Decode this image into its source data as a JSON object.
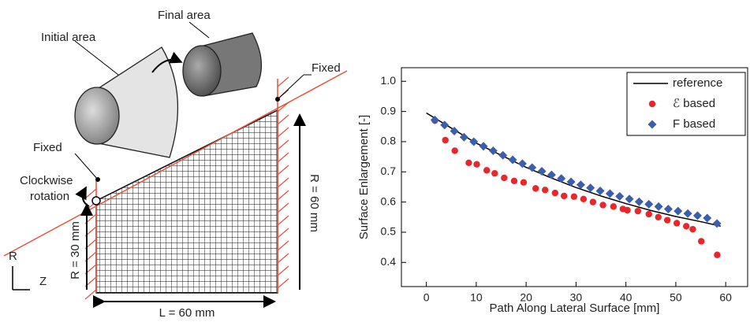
{
  "diagram": {
    "final_area": "Final area",
    "initial_area": "Initial area",
    "fixed_top": "Fixed",
    "fixed_left": "Fixed",
    "rotation": [
      "Clockwise",
      "rotation"
    ],
    "r60": "R = 60 mm",
    "r30": "R = 30 mm",
    "length": "L = 60 mm",
    "axis_r": "R",
    "axis_z": "Z"
  },
  "chart_data": {
    "type": "scatter",
    "x_label": "Path Along Lateral Surface [mm]",
    "y_label": "Surface Enlargement [-]",
    "xlim": [
      -5,
      64.4
    ],
    "ylim": [
      0.32,
      1.045
    ],
    "xticks": [
      0,
      10,
      20,
      30,
      40,
      50,
      60
    ],
    "yticks": [
      0.4,
      0.5,
      0.6,
      0.7,
      0.8,
      0.9,
      {
        "value": 1,
        "label": "1.0"
      }
    ],
    "legend": "upper-right",
    "series": [
      {
        "name": "reference",
        "color": "#000000",
        "marker": "line",
        "x": [
          0,
          5,
          10,
          15,
          20,
          25,
          30,
          35,
          40,
          45,
          50,
          55,
          59
        ],
        "values": [
          0.895,
          0.845,
          0.795,
          0.755,
          0.715,
          0.68,
          0.648,
          0.62,
          0.595,
          0.572,
          0.552,
          0.535,
          0.52
        ]
      },
      {
        "name": "ℰ based",
        "color": "#e8262c",
        "marker": "circle",
        "x": [
          1.7,
          3.8,
          5.7,
          8.5,
          10.1,
          12.1,
          13.7,
          15.6,
          17.6,
          19.5,
          21.9,
          23.8,
          25.8,
          27.6,
          29.6,
          31.5,
          33.4,
          35.4,
          37.5,
          39.4,
          40.3,
          42.4,
          44.6,
          46.5,
          48.3,
          50.2,
          52.1,
          53.4,
          55.1,
          58.3
        ],
        "values": [
          0.87,
          0.805,
          0.77,
          0.73,
          0.725,
          0.705,
          0.695,
          0.68,
          0.67,
          0.665,
          0.645,
          0.64,
          0.63,
          0.62,
          0.618,
          0.61,
          0.6,
          0.59,
          0.585,
          0.577,
          0.573,
          0.57,
          0.56,
          0.55,
          0.54,
          0.53,
          0.52,
          0.51,
          0.47,
          0.425
        ]
      },
      {
        "name": "F based",
        "color": "#3b5fad",
        "marker": "diamond",
        "x": [
          1.7,
          3.65,
          5.6,
          7.55,
          9.5,
          11.45,
          13.4,
          15.35,
          17.3,
          19.25,
          21.2,
          23.15,
          25.1,
          27.05,
          29,
          30.95,
          32.9,
          34.85,
          36.8,
          38.75,
          40.7,
          42.65,
          44.6,
          46.55,
          48.5,
          50.45,
          52.4,
          54.35,
          56.3,
          58.25
        ],
        "values": [
          0.872,
          0.855,
          0.835,
          0.815,
          0.8,
          0.785,
          0.77,
          0.755,
          0.74,
          0.727,
          0.714,
          0.702,
          0.69,
          0.678,
          0.667,
          0.657,
          0.647,
          0.637,
          0.628,
          0.619,
          0.61,
          0.601,
          0.593,
          0.585,
          0.577,
          0.57,
          0.562,
          0.555,
          0.547,
          0.529
        ]
      }
    ]
  }
}
